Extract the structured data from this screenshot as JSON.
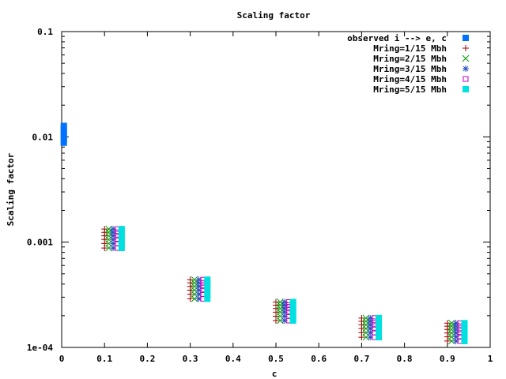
{
  "chart_data": {
    "type": "scatter",
    "title": "Scaling factor",
    "xlabel": "c",
    "ylabel": "Scaling factor",
    "xlim": [
      0,
      1
    ],
    "ylim": [
      0.0001,
      0.1
    ],
    "yscale": "log",
    "x_ticks": [
      "0",
      "0.1",
      "0.2",
      "0.3",
      "0.4",
      "0.5",
      "0.6",
      "0.7",
      "0.8",
      "0.9",
      "1"
    ],
    "y_ticks": [
      "1e-04",
      "0.001",
      "0.01",
      "0.1"
    ],
    "legend_position": "top-right",
    "grid": false,
    "series": [
      {
        "name": "observed i --> e, c",
        "color": "#0072ff",
        "marker": "filled-square",
        "x": [
          0.005,
          0.005,
          0.005,
          0.005,
          0.005,
          0.005
        ],
        "y": [
          0.0088,
          0.0095,
          0.0102,
          0.011,
          0.0118,
          0.0127
        ]
      },
      {
        "name": "Mring=1/15 Mbh",
        "color": "#a00000",
        "marker": "plus",
        "x": [
          0.1,
          0.1,
          0.1,
          0.1,
          0.1,
          0.1,
          0.3,
          0.3,
          0.3,
          0.3,
          0.3,
          0.3,
          0.5,
          0.5,
          0.5,
          0.5,
          0.5,
          0.5,
          0.7,
          0.7,
          0.7,
          0.7,
          0.7,
          0.7,
          0.9,
          0.9,
          0.9,
          0.9,
          0.9,
          0.9
        ],
        "y": [
          0.00088,
          0.00097,
          0.00106,
          0.00115,
          0.00124,
          0.00133,
          0.00029,
          0.00032,
          0.00035,
          0.00038,
          0.00041,
          0.00044,
          0.00018,
          0.000198,
          0.000216,
          0.000234,
          0.000252,
          0.00027,
          0.000125,
          0.000138,
          0.000151,
          0.000164,
          0.000177,
          0.00019,
          0.000115,
          0.000126,
          0.000137,
          0.000148,
          0.000159,
          0.00017
        ]
      },
      {
        "name": "Mring=2/15 Mbh",
        "color": "#00a000",
        "marker": "cross",
        "x": [
          0.11,
          0.11,
          0.11,
          0.11,
          0.11,
          0.11,
          0.31,
          0.31,
          0.31,
          0.31,
          0.31,
          0.31,
          0.51,
          0.51,
          0.51,
          0.51,
          0.51,
          0.51,
          0.71,
          0.71,
          0.71,
          0.71,
          0.71,
          0.71,
          0.91,
          0.91,
          0.91,
          0.91,
          0.91,
          0.91
        ],
        "y": [
          0.00088,
          0.00097,
          0.00106,
          0.00115,
          0.00124,
          0.00133,
          0.00029,
          0.00032,
          0.00035,
          0.00038,
          0.00041,
          0.00044,
          0.00018,
          0.000198,
          0.000216,
          0.000234,
          0.000252,
          0.00027,
          0.000125,
          0.000138,
          0.000151,
          0.000164,
          0.000177,
          0.00019,
          0.000115,
          0.000126,
          0.000137,
          0.000148,
          0.000159,
          0.00017
        ]
      },
      {
        "name": "Mring=3/15 Mbh",
        "color": "#2a52be",
        "marker": "star",
        "x": [
          0.12,
          0.12,
          0.12,
          0.12,
          0.12,
          0.12,
          0.32,
          0.32,
          0.32,
          0.32,
          0.32,
          0.32,
          0.52,
          0.52,
          0.52,
          0.52,
          0.52,
          0.52,
          0.72,
          0.72,
          0.72,
          0.72,
          0.72,
          0.72,
          0.92,
          0.92,
          0.92,
          0.92,
          0.92,
          0.92
        ],
        "y": [
          0.00088,
          0.00097,
          0.00106,
          0.00115,
          0.00124,
          0.00133,
          0.00029,
          0.00032,
          0.00035,
          0.00038,
          0.00041,
          0.00044,
          0.00018,
          0.000198,
          0.000216,
          0.000234,
          0.000252,
          0.00027,
          0.000125,
          0.000138,
          0.000151,
          0.000164,
          0.000177,
          0.00019,
          0.000115,
          0.000126,
          0.000137,
          0.000148,
          0.000159,
          0.00017
        ]
      },
      {
        "name": "Mring=4/15 Mbh",
        "color": "#c000c0",
        "marker": "open-square",
        "x": [
          0.13,
          0.13,
          0.13,
          0.13,
          0.13,
          0.13,
          0.33,
          0.33,
          0.33,
          0.33,
          0.33,
          0.33,
          0.53,
          0.53,
          0.53,
          0.53,
          0.53,
          0.53,
          0.73,
          0.73,
          0.73,
          0.73,
          0.73,
          0.73,
          0.93,
          0.93,
          0.93,
          0.93,
          0.93,
          0.93
        ],
        "y": [
          0.00088,
          0.00097,
          0.00106,
          0.00115,
          0.00124,
          0.00133,
          0.00029,
          0.00032,
          0.00035,
          0.00038,
          0.00041,
          0.00044,
          0.00018,
          0.000198,
          0.000216,
          0.000234,
          0.000252,
          0.00027,
          0.000125,
          0.000138,
          0.000151,
          0.000164,
          0.000177,
          0.00019,
          0.000115,
          0.000126,
          0.000137,
          0.000148,
          0.000159,
          0.00017
        ]
      },
      {
        "name": "Mring=5/15 Mbh",
        "color": "#00e0e0",
        "marker": "filled-square",
        "x": [
          0.14,
          0.14,
          0.14,
          0.14,
          0.14,
          0.14,
          0.34,
          0.34,
          0.34,
          0.34,
          0.34,
          0.34,
          0.54,
          0.54,
          0.54,
          0.54,
          0.54,
          0.54,
          0.74,
          0.74,
          0.74,
          0.74,
          0.74,
          0.74,
          0.94,
          0.94,
          0.94,
          0.94,
          0.94,
          0.94
        ],
        "y": [
          0.00088,
          0.00097,
          0.00106,
          0.00115,
          0.00124,
          0.00133,
          0.00029,
          0.00032,
          0.00035,
          0.00038,
          0.00041,
          0.00044,
          0.00018,
          0.000198,
          0.000216,
          0.000234,
          0.000252,
          0.00027,
          0.000125,
          0.000138,
          0.000151,
          0.000164,
          0.000177,
          0.00019,
          0.000115,
          0.000126,
          0.000137,
          0.000148,
          0.000159,
          0.00017
        ]
      }
    ]
  }
}
